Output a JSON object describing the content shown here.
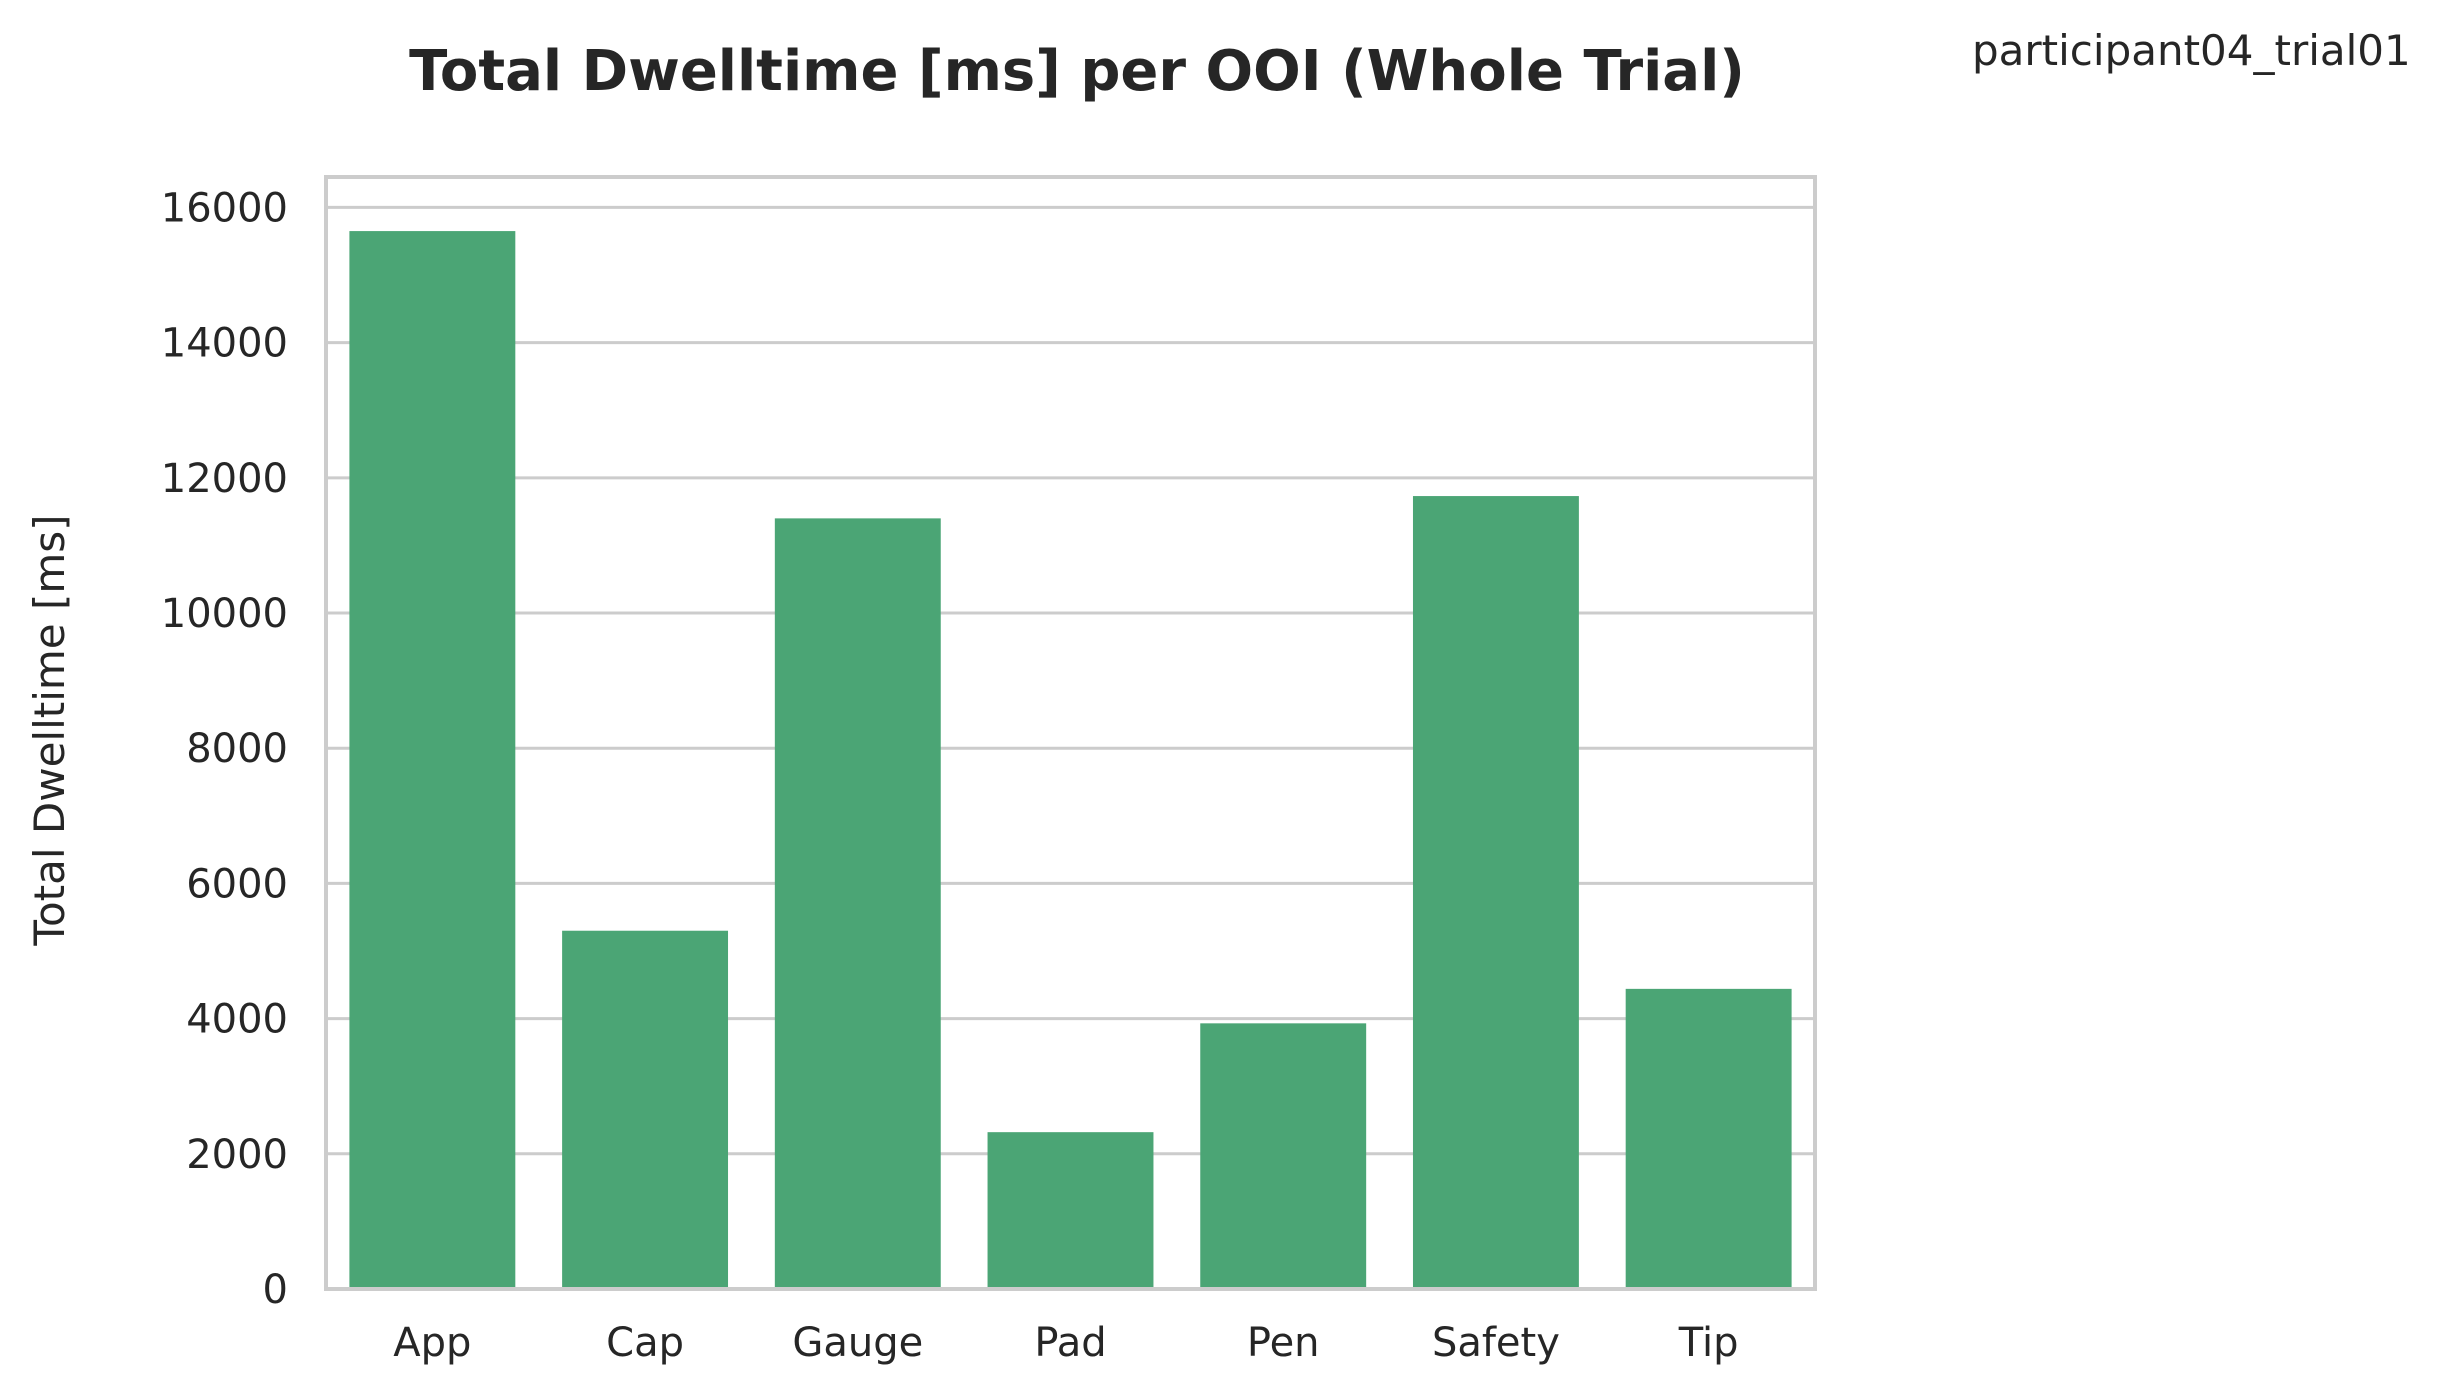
{
  "corner_label": "participant04_trial01",
  "chart_data": {
    "type": "bar",
    "title": "Total Dwelltime [ms] per OOI (Whole Trial)",
    "xlabel": "",
    "ylabel": "Total Dwelltime [ms]",
    "categories": [
      "App",
      "Cap",
      "Gauge",
      "Pad",
      "Pen",
      "Safety",
      "Tip"
    ],
    "values": [
      15650,
      5300,
      11400,
      2320,
      3930,
      11730,
      4440
    ],
    "ylim": [
      0,
      16450
    ],
    "yticks": [
      0,
      2000,
      4000,
      6000,
      8000,
      10000,
      12000,
      14000,
      16000
    ],
    "grid": true,
    "legend": "none",
    "colors": {
      "bar": "#4ba575",
      "grid": "#cccccc",
      "frame": "#cccccc",
      "text": "#262626"
    }
  }
}
